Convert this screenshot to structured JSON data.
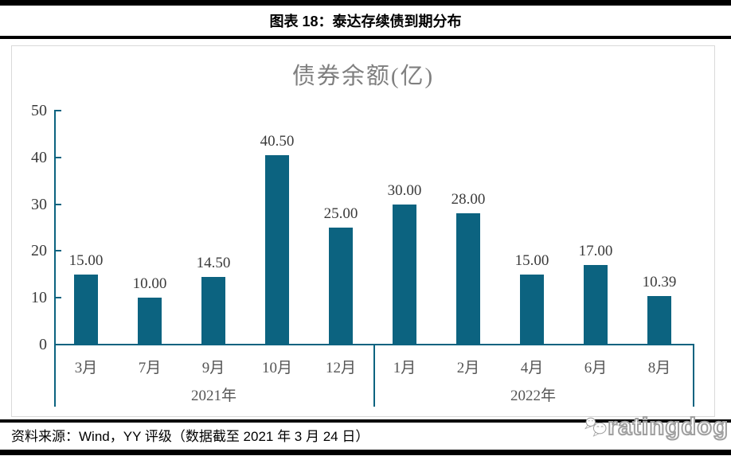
{
  "header": {
    "title": "图表 18：泰达存续债到期分布"
  },
  "chart_data": {
    "type": "bar",
    "title": "债券余额(亿)",
    "ylabel": "",
    "xlabel": "",
    "ylim": [
      0,
      50
    ],
    "yticks": [
      0,
      10,
      20,
      30,
      40,
      50
    ],
    "grid": "off",
    "legend": "none",
    "bar_color": "#0c6380",
    "axis_color": "#0c6380",
    "categories": [
      "3月",
      "7月",
      "9月",
      "10月",
      "12月",
      "1月",
      "2月",
      "4月",
      "6月",
      "8月"
    ],
    "values": [
      15.0,
      10.0,
      14.5,
      40.5,
      25.0,
      30.0,
      28.0,
      15.0,
      17.0,
      10.39
    ],
    "value_labels": [
      "15.00",
      "10.00",
      "14.50",
      "40.50",
      "25.00",
      "30.00",
      "28.00",
      "15.00",
      "17.00",
      "10.39"
    ],
    "groups": [
      {
        "year": "2021年",
        "count": 5
      },
      {
        "year": "2022年",
        "count": 5
      }
    ]
  },
  "footer": {
    "source": "资料来源：Wind，YY 评级（数据截至 2021 年 3 月 24 日）",
    "watermark": "ratingdog"
  }
}
